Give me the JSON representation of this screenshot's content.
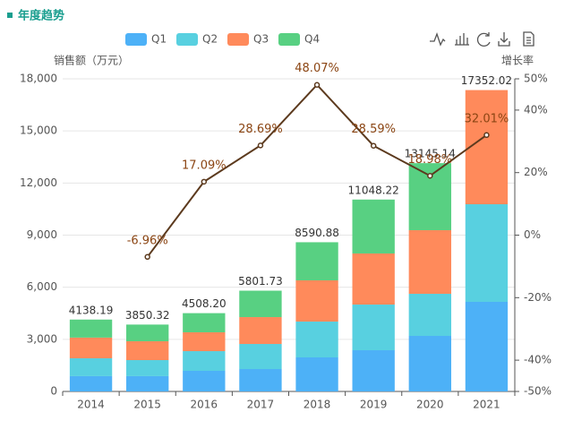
{
  "chart_data": {
    "type": "stacked-bar-line",
    "title": "年度趋势",
    "y_label": "销售额（万元）",
    "y2_label": "增长率",
    "categories": [
      "2014",
      "2015",
      "2016",
      "2017",
      "2018",
      "2019",
      "2020",
      "2021"
    ],
    "series": [
      {
        "name": "Q1",
        "color": "#4db1f7",
        "values": [
          880,
          880,
          1186,
          1289,
          1960,
          2372,
          3198,
          5158
        ]
      },
      {
        "name": "Q2",
        "color": "#58d0e0",
        "values": [
          1030,
          925,
          1134,
          1444,
          2063,
          2631,
          2424,
          5621
        ]
      },
      {
        "name": "Q3",
        "color": "#ff8a5b",
        "values": [
          1190,
          1083,
          1084,
          1547,
          2372,
          2939,
          3662,
          6573
        ]
      },
      {
        "name": "Q4",
        "color": "#58d082",
        "values": [
          1038,
          962,
          1104,
          1522,
          2196,
          3106,
          3861,
          0
        ]
      }
    ],
    "totals": [
      4138.19,
      3850.32,
      4508.2,
      5801.73,
      8590.88,
      11048.22,
      13145.14,
      17352.02
    ],
    "total_labels": [
      "4138.19",
      "3850.32",
      "4508.20",
      "5801.73",
      "8590.88",
      "11048.22",
      "13145.14",
      "17352.02"
    ],
    "growth": {
      "name": "增长率",
      "color": "#5c3a1e",
      "axis": "y2",
      "values": [
        null,
        -6.96,
        17.09,
        28.69,
        48.07,
        28.59,
        18.98,
        32.01
      ],
      "value_labels": [
        null,
        "-6.96%",
        "17.09%",
        "28.69%",
        "48.07%",
        "28.59%",
        "18.98%",
        "32.01%"
      ]
    },
    "ylim": [
      0,
      18000
    ],
    "yticks": [
      0,
      {
        "value": 3000,
        "label": "3,000"
      },
      {
        "value": 6000,
        "label": "6,000"
      },
      {
        "value": 9000,
        "label": "9,000"
      },
      {
        "value": 12000,
        "label": "12,000"
      },
      {
        "value": 15000,
        "label": "15,000"
      },
      {
        "value": 18000,
        "label": "18,000"
      }
    ],
    "y2lim": [
      -50,
      50
    ],
    "y2ticks": [
      {
        "value": -50,
        "label": "-50%"
      },
      {
        "value": -40,
        "label": "-40%"
      },
      {
        "value": -20,
        "label": "-20%"
      },
      {
        "value": 0,
        "label": "0%"
      },
      {
        "value": 20,
        "label": "20%"
      },
      {
        "value": 40,
        "label": "40%"
      },
      {
        "value": 50,
        "label": "50%"
      }
    ],
    "grid": true
  }
}
